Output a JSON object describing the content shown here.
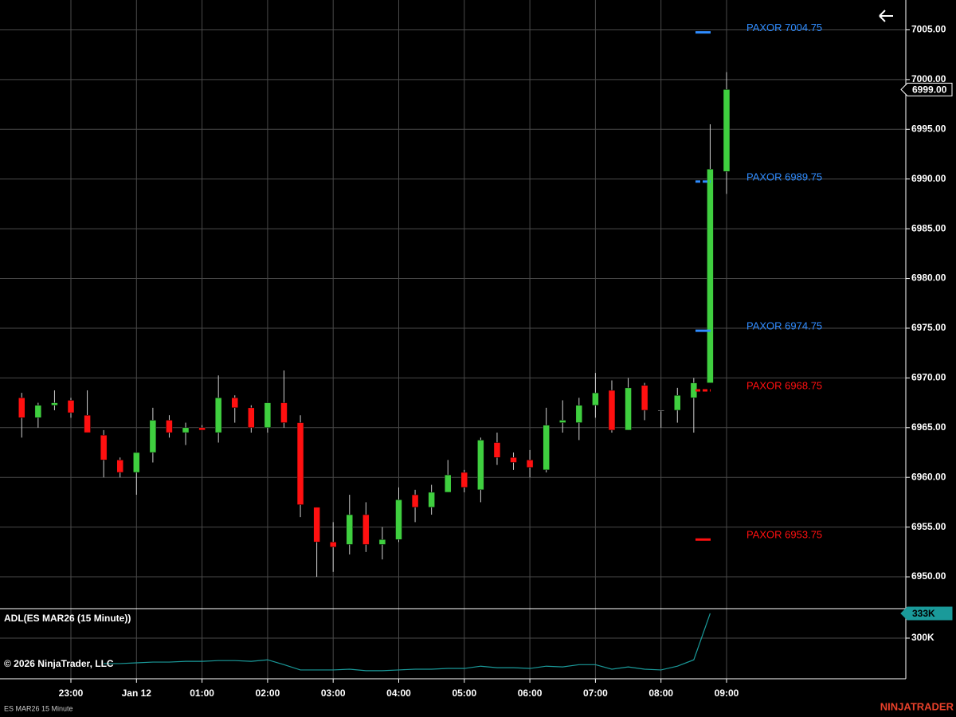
{
  "chart_data": [
    {
      "type": "candlestick",
      "categories": [
        null,
        null,
        null,
        "23:00",
        null,
        null,
        null,
        "Jan 12",
        null,
        null,
        null,
        "01:00",
        null,
        null,
        null,
        "02:00",
        null,
        null,
        null,
        "03:00",
        null,
        null,
        null,
        "04:00",
        null,
        null,
        null,
        "05:00",
        null,
        null,
        null,
        "06:00",
        null,
        null,
        null,
        "07:00",
        null,
        null,
        null,
        "08:00",
        null,
        null,
        null,
        "09:00"
      ],
      "open": [
        6968,
        6966,
        6967.25,
        6967.75,
        6966.25,
        6964.25,
        6961.75,
        6960.5,
        6962.5,
        6965.75,
        6964.5,
        6965,
        6964.5,
        6968,
        6967,
        6965,
        6967.5,
        6965.5,
        6957,
        6953.5,
        6953.25,
        6956.25,
        6953.25,
        6953.75,
        6958.25,
        6957,
        6958.5,
        6960.5,
        6958.75,
        6963.5,
        6962,
        6961.75,
        6960.75,
        6965.5,
        6965.5,
        6967.25,
        6968.75,
        6964.75,
        6969.25,
        6966.75,
        6966.75,
        6968,
        6969.5,
        6990.75
      ],
      "high": [
        6968.5,
        6967.5,
        6968.75,
        6968,
        6968.75,
        6964.75,
        6962,
        6962.5,
        6967,
        6966.25,
        6965.5,
        6965.25,
        6970.25,
        6968.25,
        6967.25,
        6967.5,
        6970.75,
        6966.25,
        6957,
        6955.5,
        6958.25,
        6957.5,
        6955,
        6959,
        6958.75,
        6959.25,
        6961.75,
        6960.75,
        6964,
        6964.5,
        6962.5,
        6962.75,
        6967,
        6967.75,
        6968,
        6970.5,
        6969.75,
        6970,
        6969.5,
        6966.75,
        6969,
        6970,
        6995.5,
        7000.75
      ],
      "low": [
        6964,
        6965,
        6966.75,
        6966,
        6964.5,
        6960,
        6960,
        6958.25,
        6961.5,
        6964,
        6963.25,
        6964.75,
        6963.5,
        6965.5,
        6964.5,
        6964.5,
        6965,
        6956,
        6950,
        6950.5,
        6952.25,
        6952.5,
        6951.75,
        6953.5,
        6955.5,
        6956.25,
        6958.5,
        6958.5,
        6957.5,
        6961.25,
        6960.75,
        6960,
        6960.5,
        6964.5,
        6963.75,
        6966,
        6964.5,
        6964.75,
        6965.75,
        6965,
        6965.5,
        6964.5,
        6969.5,
        6988.5
      ],
      "close": [
        6966,
        6967.25,
        6967.5,
        6966.5,
        6964.5,
        6961.75,
        6960.5,
        6962.5,
        6965.75,
        6964.5,
        6965,
        6964.75,
        6968,
        6967,
        6965,
        6967.5,
        6965.5,
        6957.25,
        6953.5,
        6953,
        6956.25,
        6953.25,
        6953.75,
        6957.75,
        6957,
        6958.5,
        6960.25,
        6959,
        6963.75,
        6962,
        6961.5,
        6961,
        6965.25,
        6965.75,
        6967.25,
        6968.5,
        6964.75,
        6969,
        6966.75,
        6966.75,
        6968.25,
        6969.5,
        6991,
        6999
      ],
      "up_color": "#3fcf3f",
      "down_color": "#ff1010",
      "wick_color": "#d0d0d0",
      "ylim": [
        6946.8,
        7008
      ],
      "yticks": [
        {
          "value": 6950,
          "label": "6950.00"
        },
        {
          "value": 6955,
          "label": "6955.00"
        },
        {
          "value": 6960,
          "label": "6960.00"
        },
        {
          "value": 6965,
          "label": "6965.00"
        },
        {
          "value": 6970,
          "label": "6970.00"
        },
        {
          "value": 6975,
          "label": "6975.00"
        },
        {
          "value": 6980,
          "label": "6980.00"
        },
        {
          "value": 6985,
          "label": "6985.00"
        },
        {
          "value": 6990,
          "label": "6990.00"
        },
        {
          "value": 6995,
          "label": "6995.00"
        },
        {
          "value": 7000,
          "label": "7000.00"
        },
        {
          "value": 7005,
          "label": "7005.00"
        }
      ],
      "grid": true,
      "last_price": {
        "value": 6999,
        "label": "6999.00"
      },
      "levels": [
        {
          "value": 7004.75,
          "label": "PAXOR 7004.75",
          "color": "#2f8cff"
        },
        {
          "value": 6989.75,
          "label": "PAXOR 6989.75",
          "color": "#2f8cff"
        },
        {
          "value": 6974.75,
          "label": "PAXOR 6974.75",
          "color": "#2f8cff"
        },
        {
          "value": 6968.75,
          "label": "PAXOR 6968.75",
          "color": "#ff1010"
        },
        {
          "value": 6953.75,
          "label": "PAXOR 6953.75",
          "color": "#ff1010"
        }
      ]
    },
    {
      "type": "line",
      "title": "ADL(ES MAR26 (15 Minute))",
      "annotation": "© 2026 NinjaTrader, LLC",
      "color": "#1a9a9a",
      "values": [
        null,
        null,
        null,
        null,
        null,
        266000,
        266000,
        267000,
        268000,
        268000,
        269000,
        269000,
        270000,
        270000,
        269000,
        271000,
        264500,
        257500,
        257500,
        257500,
        258500,
        256500,
        256500,
        257500,
        258500,
        258500,
        259500,
        259500,
        262500,
        260500,
        260500,
        259500,
        262500,
        261500,
        264500,
        264500,
        258500,
        261500,
        258500,
        257500,
        262500,
        271000,
        333000,
        null
      ],
      "ylim": [
        245700,
        338300
      ],
      "yticks": [
        {
          "value": 300000,
          "label": "300K"
        }
      ],
      "grid": true,
      "last_value": {
        "value": 333000,
        "label": "333K"
      }
    }
  ],
  "footer": {
    "instrument": "ES MAR26  15 Minute",
    "brand": "NINJATRADER"
  }
}
